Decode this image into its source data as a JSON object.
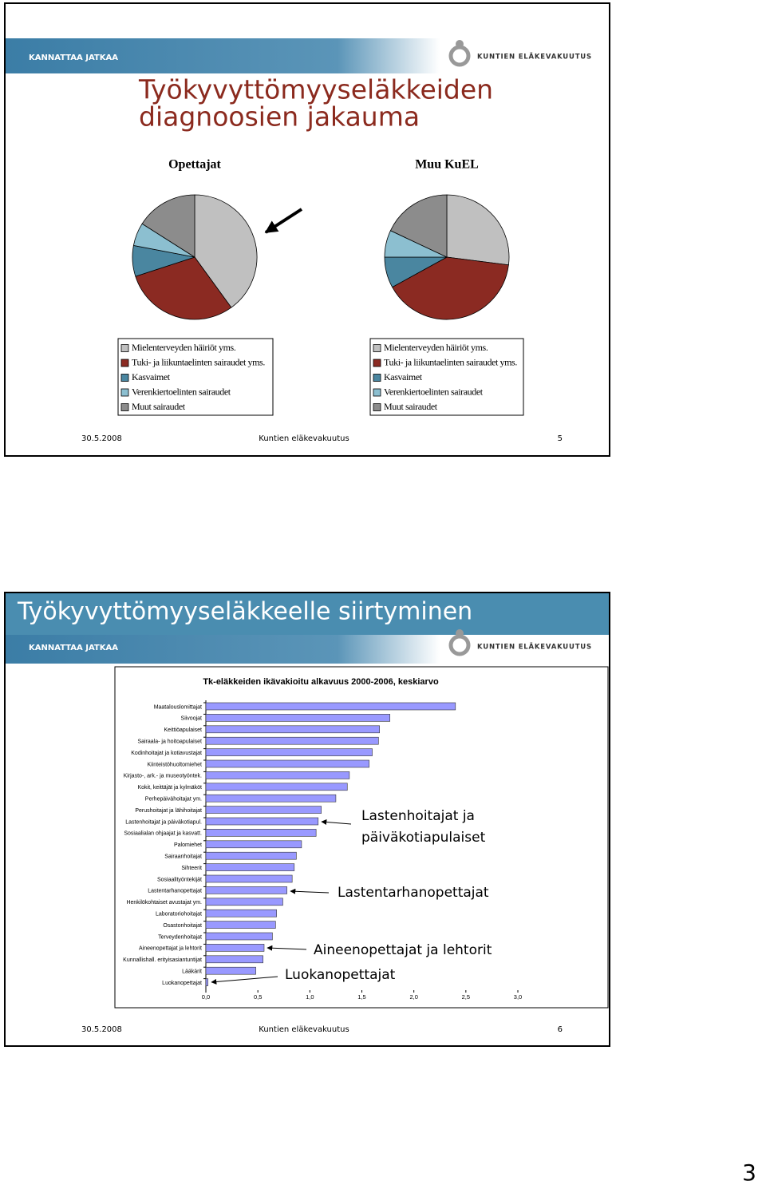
{
  "slides": [
    {
      "brand": "KANNATTAA JATKAA",
      "logo": "KUNTIEN ELÄKEVAKUUTUS",
      "title_lines": [
        "Työkyvyttömyyseläkkeiden",
        "diagnoosien jakauma"
      ],
      "footer": {
        "date": "30.5.2008",
        "org": "Kuntien eläkevakuutus",
        "page": 5
      }
    },
    {
      "title": "Työkyvyttömyyseläkkeelle siirtyminen",
      "brand": "KANNATTAA JATKAA",
      "logo": "KUNTIEN ELÄKEVAKUUTUS",
      "footer": {
        "date": "30.5.2008",
        "org": "Kuntien eläkevakuutus",
        "page": 6
      }
    }
  ],
  "chart_data": [
    {
      "type": "pie",
      "title": "Opettajat",
      "categories": [
        "Mielenterveyden häiriöt yms.",
        "Tuki- ja liikuntaelinten sairaudet yms.",
        "Kasvaimet",
        "Verenkiertoelinten sairaudet",
        "Muut sairaudet"
      ],
      "values": [
        40,
        30,
        8,
        6,
        16
      ],
      "colors": [
        "#c0c0c0",
        "#8b2a22",
        "#4a86a0",
        "#8cbfd0",
        "#8c8c8c"
      ]
    },
    {
      "type": "pie",
      "title": "Muu KuEL",
      "categories": [
        "Mielenterveyden häiriöt yms.",
        "Tuki- ja liikuntaelinten sairaudet yms.",
        "Kasvaimet",
        "Verenkiertoelinten sairaudet",
        "Muut sairaudet"
      ],
      "values": [
        27,
        40,
        8,
        7,
        18
      ],
      "colors": [
        "#c0c0c0",
        "#8b2a22",
        "#4a86a0",
        "#8cbfd0",
        "#8c8c8c"
      ]
    },
    {
      "type": "bar",
      "orientation": "horizontal",
      "title": "Tk-eläkkeiden ikävakioitu alkavuus 2000-2006, keskiarvo",
      "categories": [
        "Maatalouslomittajat",
        "Siivoojat",
        "Keittiöapulaiset",
        "Sairaala- ja hoitoapulaiset",
        "Kodinhoitajat ja kotiavustajat",
        "Kiinteistöhuoltomiehet",
        "Kirjasto-, ark.- ja museotyöntek.",
        "Kokit, keittäjät ja kylmäköt",
        "Perhepäivähoitajat ym.",
        "Perushoitajat ja lähihoitajat",
        "Lastenhoitajat ja päiväkotiapul.",
        "Sosiaalialan ohjaajat ja kasvatt.",
        "Palomiehet",
        "Sairaanhoitajat",
        "Sihteerit",
        "Sosiaalityöntekijät",
        "Lastentarhanopettajat",
        "Henkilökohtaiset avustajat ym.",
        "Laboratoriohoitajat",
        "Osastonhoitajat",
        "Terveydenhoitajat",
        "Aineenopettajat ja lehtorit",
        "Kunnallishall. erityisasiantuntijat",
        "Lääkärit",
        "Luokanopettajat"
      ],
      "values": [
        2.4,
        1.77,
        1.67,
        1.66,
        1.6,
        1.57,
        1.38,
        1.36,
        1.25,
        1.11,
        1.08,
        1.06,
        0.92,
        0.87,
        0.85,
        0.83,
        0.78,
        0.74,
        0.68,
        0.67,
        0.64,
        0.56,
        0.55,
        0.48,
        0.02
      ],
      "color": "#9999ff",
      "xlim": [
        0,
        3
      ],
      "xticks": [
        {
          "value": 0,
          "label": "0,0"
        },
        {
          "value": 0.5,
          "label": "0,5"
        },
        {
          "value": 1,
          "label": "1,0"
        },
        {
          "value": 1.5,
          "label": "1,5"
        },
        {
          "value": 2,
          "label": "2,0"
        },
        {
          "value": 2.5,
          "label": "2,5"
        },
        {
          "value": 3,
          "label": "3,0"
        }
      ],
      "annotations": [
        {
          "lines": [
            "Lastenhoitajat ja",
            "päiväkotiapulaiset"
          ]
        },
        {
          "lines": [
            "Lastentarhanopettajat"
          ]
        },
        {
          "lines": [
            "Aineenopettajat ja lehtorit"
          ]
        },
        {
          "lines": [
            "Luokanopettajat"
          ]
        }
      ]
    }
  ],
  "page_number": 3
}
